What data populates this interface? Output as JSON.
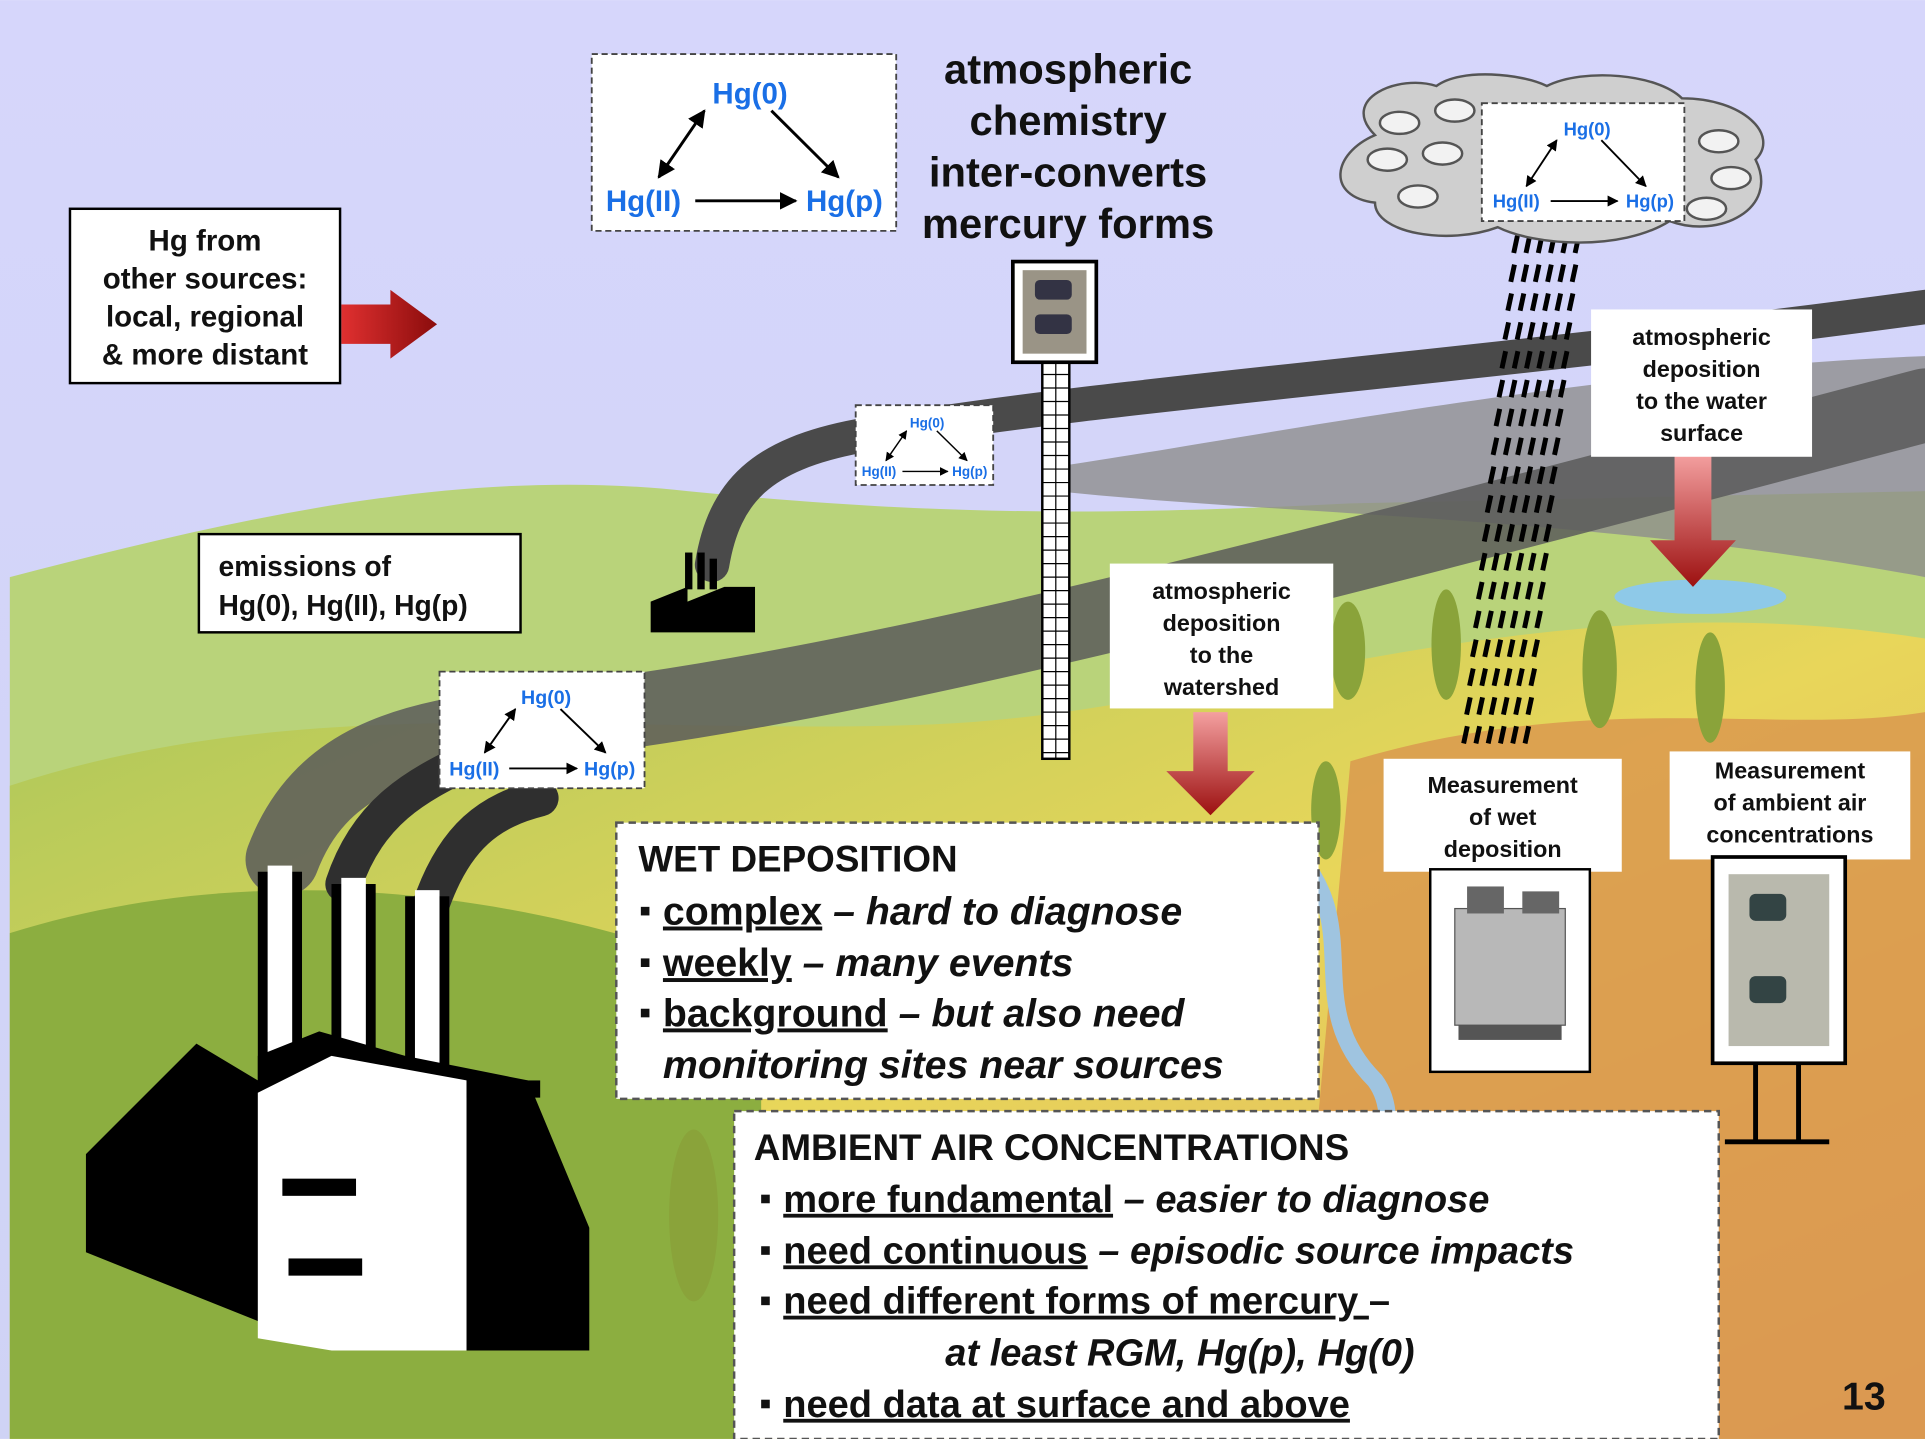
{
  "title_lines": [
    "atmospheric",
    "chemistry",
    "inter-converts",
    "mercury forms"
  ],
  "cycle_diagrams": [
    {
      "top": "Hg(0)",
      "left": "Hg(II)",
      "right": "Hg(p)"
    },
    {
      "top": "Hg(0)",
      "left": "Hg(II)",
      "right": "Hg(p)"
    },
    {
      "top": "Hg(0)",
      "left": "Hg(II)",
      "right": "Hg(p)"
    },
    {
      "top": "Hg(0)",
      "left": "Hg(II)",
      "right": "Hg(p)"
    }
  ],
  "other_sources_lines": [
    "Hg from",
    "other sources:",
    "local, regional",
    "& more distant"
  ],
  "emissions_lines": [
    "emissions  of",
    "Hg(0), Hg(II), Hg(p)"
  ],
  "watershed_lines": [
    "atmospheric",
    "deposition",
    "to the",
    "watershed"
  ],
  "water_surface_lines": [
    "atmospheric",
    "deposition",
    "to the water",
    "surface"
  ],
  "wet_measure_lines": [
    "Measurement",
    "of wet",
    "deposition"
  ],
  "ambient_measure_lines": [
    "Measurement",
    "of ambient air",
    "concentrations"
  ],
  "wet_deposition": {
    "heading": "WET DEPOSITION",
    "items": [
      {
        "term": "complex",
        "desc": [
          "– hard to diagnose"
        ]
      },
      {
        "term": "weekly",
        "desc": [
          "– many events"
        ]
      },
      {
        "term": "background",
        "desc": [
          "– but also need",
          "monitoring sites near sources"
        ]
      }
    ]
  },
  "ambient_air": {
    "heading": "AMBIENT AIR CONCENTRATIONS",
    "items": [
      {
        "term": " more fundamental",
        "desc": [
          "– easier to diagnose"
        ]
      },
      {
        "term": "need continuous",
        "desc": [
          "– episodic source impacts"
        ]
      },
      {
        "term": "need different forms of mercury ",
        "desc": [
          "–",
          "at least RGM, Hg(p), Hg(0)"
        ]
      },
      {
        "term": "need data at surface and above",
        "desc": []
      }
    ]
  },
  "page_number": "13"
}
